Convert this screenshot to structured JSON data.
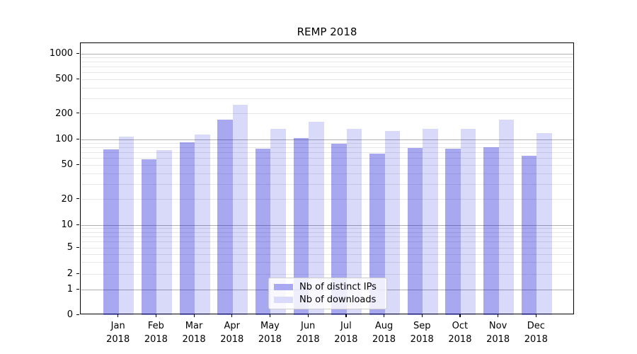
{
  "title": "REMP 2018",
  "legend": {
    "items": [
      {
        "label": "Nb of distinct IPs",
        "color": "#a8a8f3"
      },
      {
        "label": "Nb of downloads",
        "color": "#dadafb"
      }
    ]
  },
  "chart_data": {
    "type": "bar",
    "title": "REMP 2018",
    "categories": [
      "Jan 2018",
      "Feb 2018",
      "Mar 2018",
      "Apr 2018",
      "May 2018",
      "Jun 2018",
      "Jul 2018",
      "Aug 2018",
      "Sep 2018",
      "Oct 2018",
      "Nov 2018",
      "Dec 2018"
    ],
    "x_tick_line1": [
      "Jan",
      "Feb",
      "Mar",
      "Apr",
      "May",
      "Jun",
      "Jul",
      "Aug",
      "Sep",
      "Oct",
      "Nov",
      "Dec"
    ],
    "x_tick_line2": "2018",
    "series": [
      {
        "name": "Nb of distinct IPs",
        "color": "#a8a8f3",
        "fill_rgba": "rgba(0,0,215,0.34)",
        "values": [
          77,
          59,
          93,
          169,
          78,
          103,
          90,
          68,
          79,
          78,
          81,
          65
        ]
      },
      {
        "name": "Nb of downloads",
        "color": "#dadafb",
        "fill_rgba": "rgba(0,0,215,0.15)",
        "values": [
          107,
          75,
          115,
          253,
          133,
          160,
          133,
          125,
          132,
          133,
          171,
          118
        ]
      }
    ],
    "y_axis": {
      "scale": "symlog",
      "tick_values": [
        0,
        1,
        2,
        5,
        10,
        20,
        50,
        100,
        200,
        500,
        1000
      ],
      "ylim": [
        0,
        1330
      ]
    },
    "grid": true,
    "legend_position": "lower-center"
  }
}
